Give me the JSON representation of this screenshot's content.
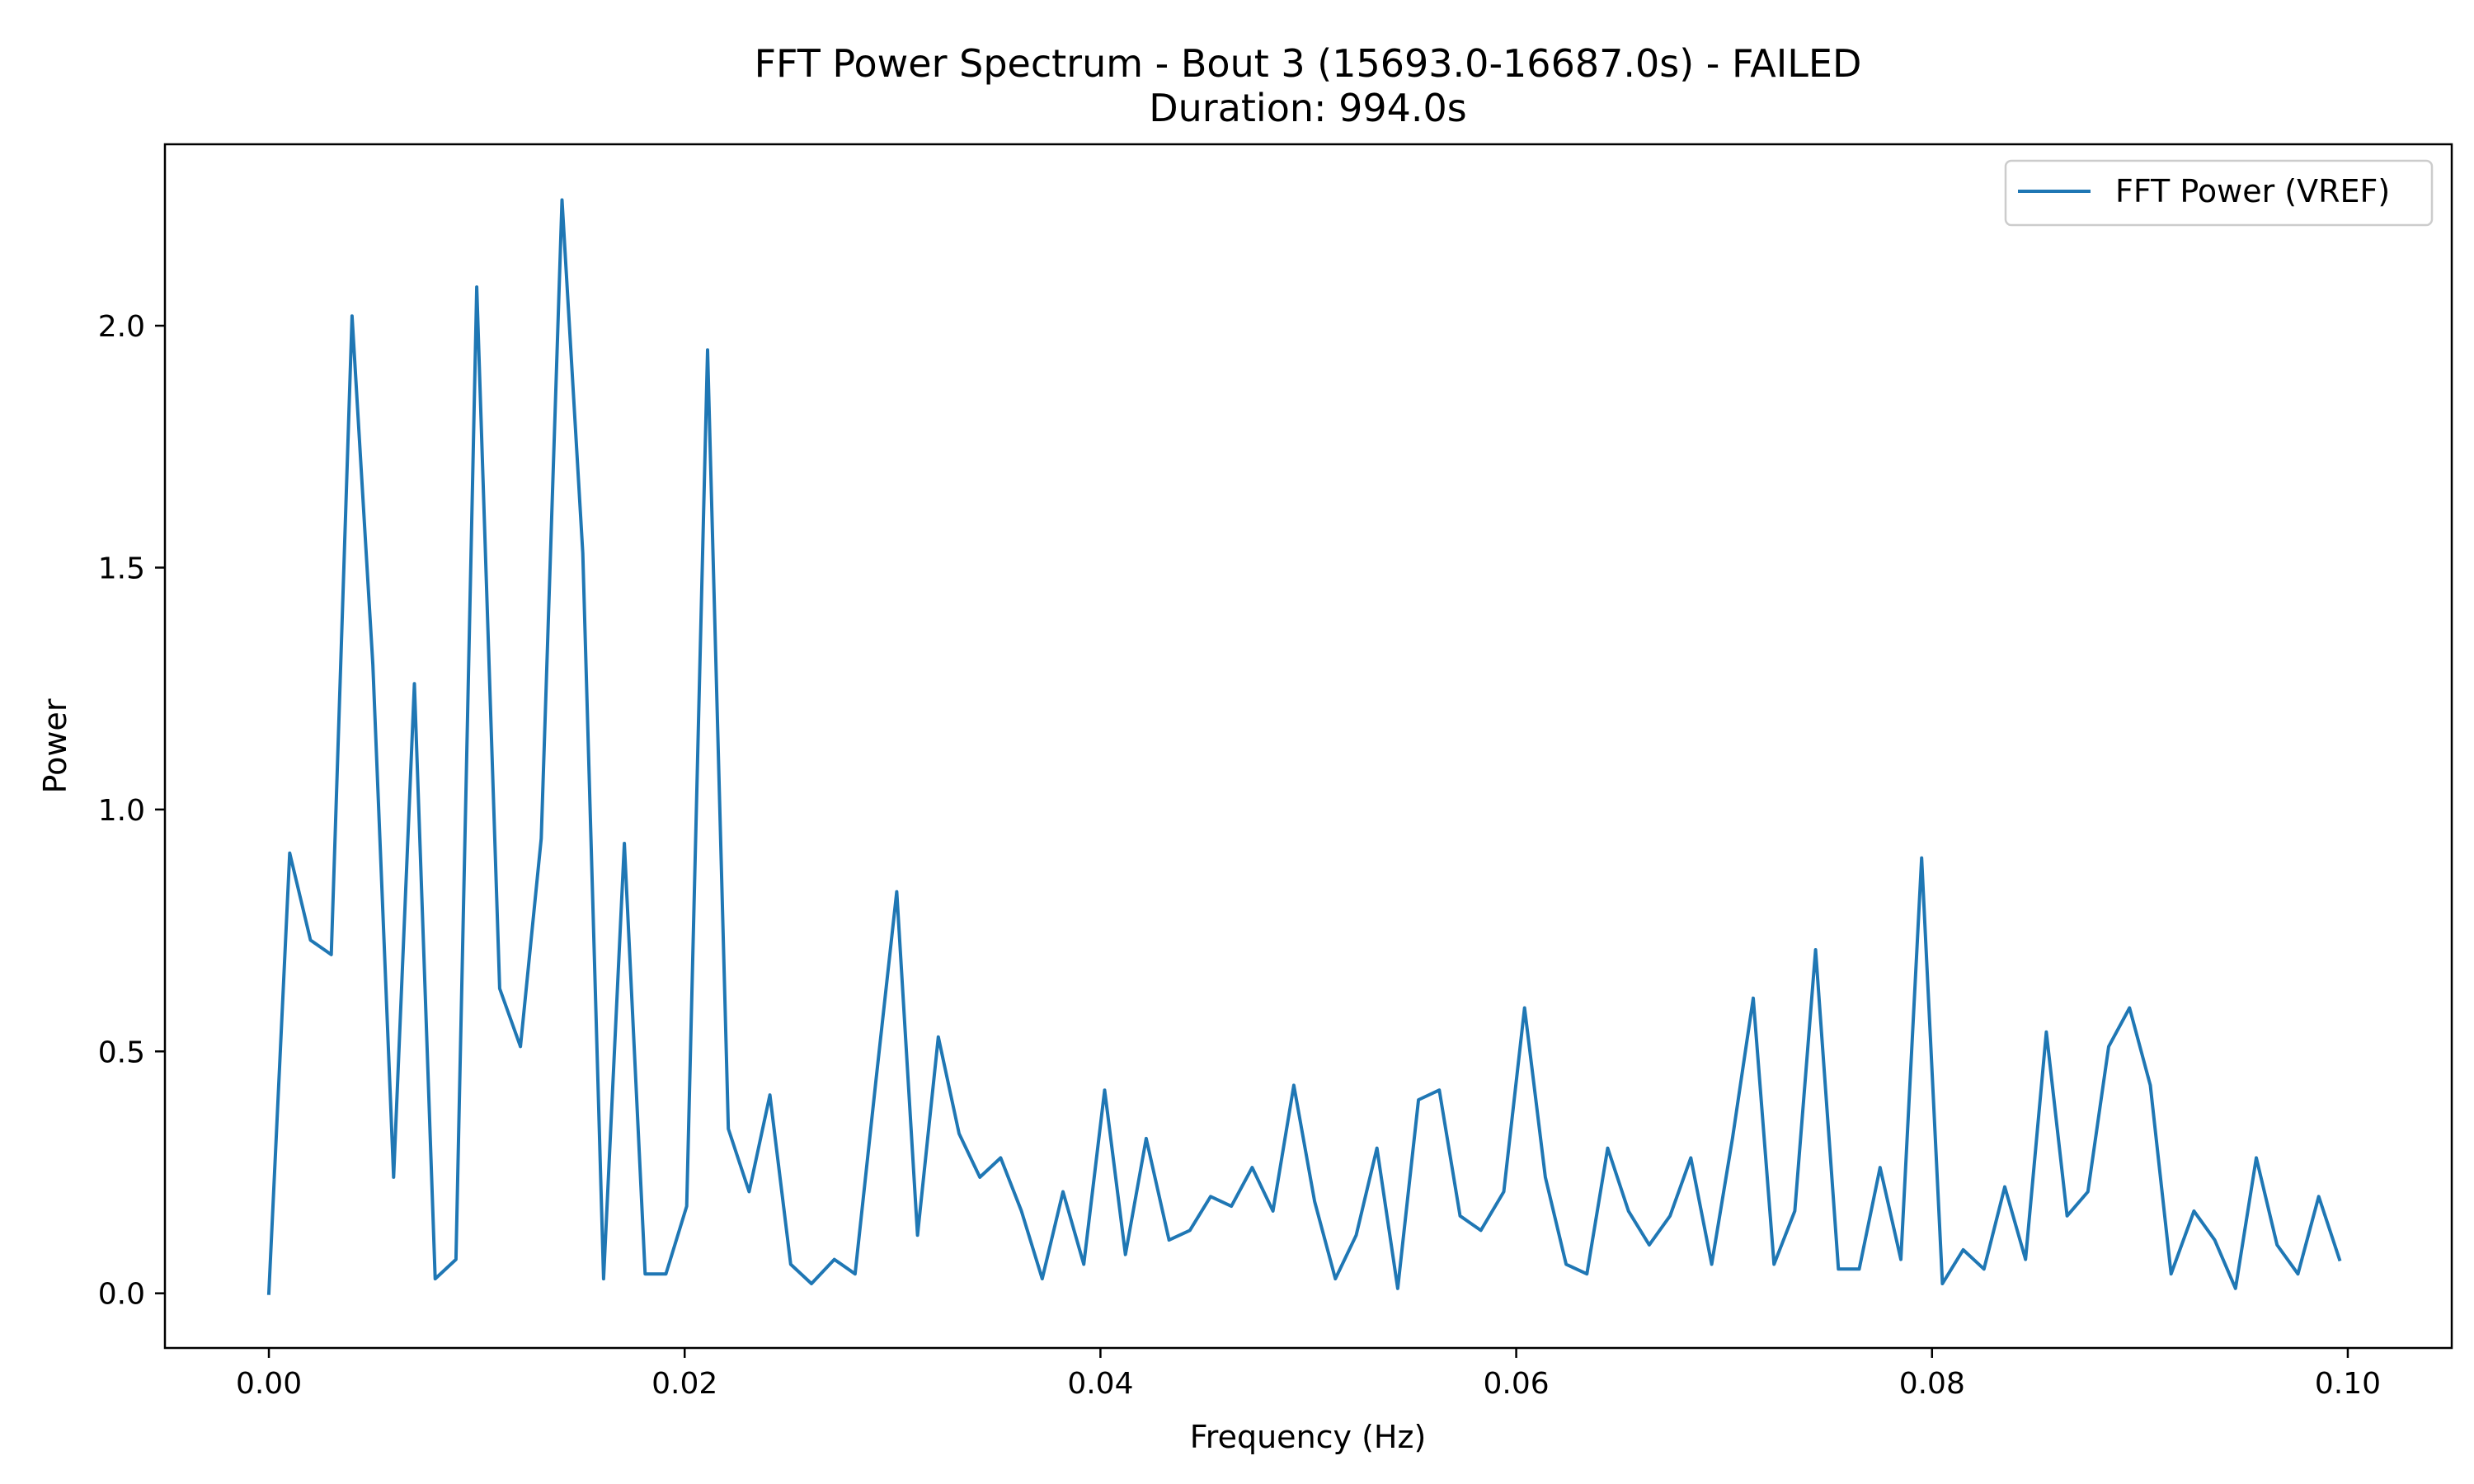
{
  "chart_data": {
    "type": "line",
    "title": "FFT Power Spectrum - Bout 3 (15693.0-16687.0s) - FAILED",
    "subtitle": "Duration: 994.0s",
    "xlabel": "Frequency (Hz)",
    "ylabel": "Power",
    "xlim": [
      -0.005,
      0.105
    ],
    "ylim": [
      -0.113,
      2.375
    ],
    "x_ticks": [
      0.0,
      0.02,
      0.04,
      0.06,
      0.08,
      0.1
    ],
    "x_tick_labels": [
      "0.00",
      "0.02",
      "0.04",
      "0.06",
      "0.08",
      "0.10"
    ],
    "y_ticks": [
      0.0,
      0.5,
      1.0,
      1.5,
      2.0
    ],
    "y_tick_labels": [
      "0.0",
      "0.5",
      "1.0",
      "1.5",
      "2.0"
    ],
    "grid": false,
    "legend_position": "top-right",
    "series": [
      {
        "name": "FFT Power (VREF)",
        "color": "#1f77b4",
        "x": [
          0.0,
          0.001,
          0.002,
          0.003,
          0.004,
          0.005,
          0.006,
          0.007,
          0.008,
          0.009,
          0.01,
          0.0111,
          0.0121,
          0.0131,
          0.0141,
          0.0151,
          0.0161,
          0.0171,
          0.0181,
          0.0191,
          0.0201,
          0.0211,
          0.0221,
          0.0231,
          0.0241,
          0.0251,
          0.0261,
          0.0272,
          0.0282,
          0.0292,
          0.0302,
          0.0312,
          0.0322,
          0.0332,
          0.0342,
          0.0352,
          0.0362,
          0.0372,
          0.0382,
          0.0392,
          0.0402,
          0.0412,
          0.0422,
          0.0433,
          0.0443,
          0.0453,
          0.0463,
          0.0473,
          0.0483,
          0.0493,
          0.0503,
          0.0513,
          0.0523,
          0.0533,
          0.0543,
          0.0553,
          0.0563,
          0.0573,
          0.0583,
          0.0594,
          0.0604,
          0.0614,
          0.0624,
          0.0634,
          0.0644,
          0.0654,
          0.0664,
          0.0674,
          0.0684,
          0.0694,
          0.0704,
          0.0714,
          0.0724,
          0.0734,
          0.0744,
          0.0755,
          0.0765,
          0.0775,
          0.0785,
          0.0795,
          0.0805,
          0.0815,
          0.0825,
          0.0835,
          0.0845,
          0.0855,
          0.0865,
          0.0875,
          0.0885,
          0.0895,
          0.0905,
          0.0915,
          0.0926,
          0.0936,
          0.0946,
          0.0956,
          0.0966,
          0.0976,
          0.0986,
          0.0996
        ],
        "values": [
          0.0,
          0.91,
          0.73,
          0.7,
          2.02,
          1.3,
          0.24,
          1.26,
          0.03,
          0.07,
          2.08,
          0.63,
          0.51,
          0.94,
          2.26,
          1.53,
          0.03,
          0.93,
          0.04,
          0.04,
          0.18,
          1.95,
          0.34,
          0.21,
          0.41,
          0.06,
          0.02,
          0.07,
          0.04,
          0.44,
          0.83,
          0.12,
          0.53,
          0.33,
          0.24,
          0.28,
          0.17,
          0.03,
          0.21,
          0.06,
          0.42,
          0.08,
          0.32,
          0.11,
          0.13,
          0.2,
          0.18,
          0.26,
          0.17,
          0.43,
          0.19,
          0.03,
          0.12,
          0.3,
          0.01,
          0.4,
          0.42,
          0.16,
          0.13,
          0.21,
          0.59,
          0.24,
          0.06,
          0.04,
          0.3,
          0.17,
          0.1,
          0.16,
          0.28,
          0.06,
          0.32,
          0.61,
          0.06,
          0.17,
          0.71,
          0.05,
          0.05,
          0.26,
          0.07,
          0.9,
          0.02,
          0.09,
          0.05,
          0.22,
          0.07,
          0.54,
          0.16,
          0.21,
          0.51,
          0.59,
          0.43,
          0.04,
          0.17,
          0.11,
          0.01,
          0.28,
          0.1,
          0.04,
          0.2,
          0.07
        ]
      }
    ]
  }
}
